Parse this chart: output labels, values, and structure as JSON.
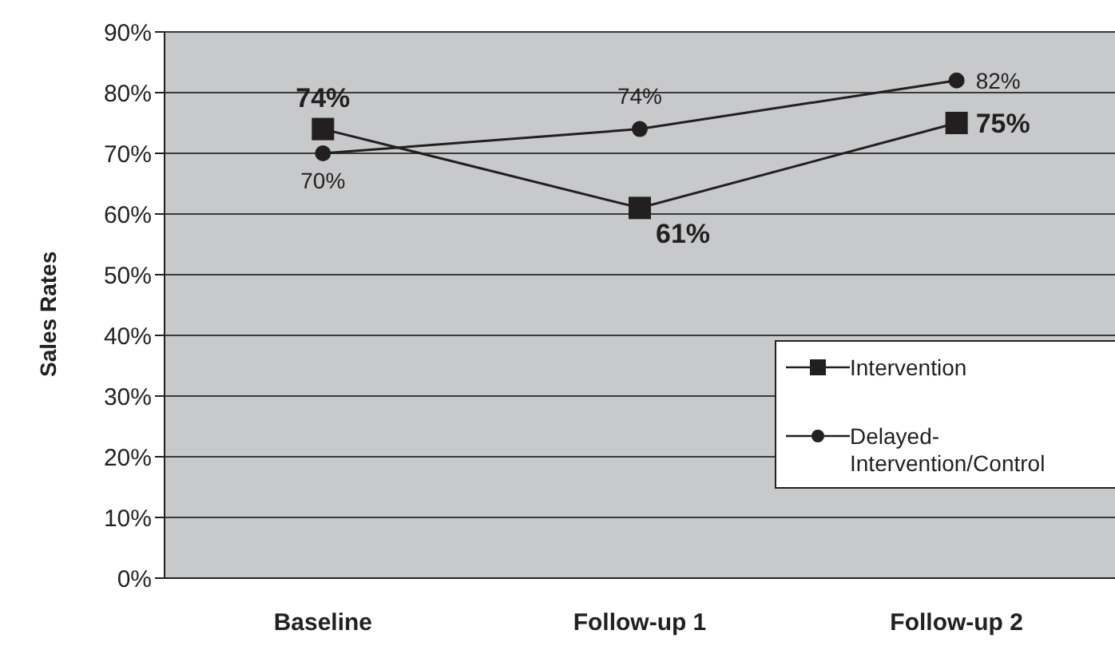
{
  "chart_data": {
    "type": "line",
    "ylabel": "Sales Rates",
    "categories": [
      "Baseline",
      "Follow-up  1",
      "Follow-up  2"
    ],
    "series": [
      {
        "name": "Intervention",
        "color": "#231f20",
        "marker": "square",
        "values": [
          74,
          61,
          75
        ],
        "value_labels": [
          "74%",
          "61%",
          "75%"
        ]
      },
      {
        "name": "Delayed-Intervention/Control",
        "color": "#231f20",
        "marker": "circle",
        "values": [
          70,
          74,
          82
        ],
        "value_labels": [
          "70%",
          "74%",
          "82%"
        ]
      }
    ],
    "ylim": [
      0,
      90
    ],
    "yticks": [
      {
        "value": 0,
        "label": "0%"
      },
      {
        "value": 10,
        "label": "10%"
      },
      {
        "value": 20,
        "label": "20%"
      },
      {
        "value": 30,
        "label": "30%"
      },
      {
        "value": 40,
        "label": "40%"
      },
      {
        "value": 50,
        "label": "50%"
      },
      {
        "value": 60,
        "label": "60%"
      },
      {
        "value": 70,
        "label": "70%"
      },
      {
        "value": 80,
        "label": "80%"
      },
      {
        "value": 90,
        "label": "90%"
      }
    ],
    "grid": "y",
    "legend": "bottom right",
    "line_style": "solid"
  }
}
